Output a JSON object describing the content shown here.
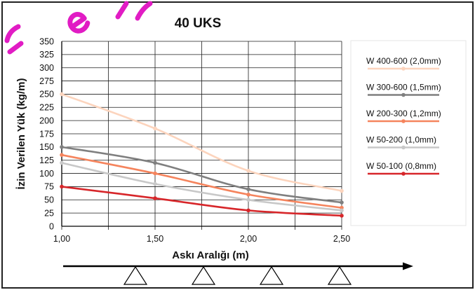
{
  "chart_data": {
    "type": "line",
    "title": "40 UKS",
    "xlabel": "Askı Aralığı (m)",
    "ylabel": "İzin Verilen Yük (kg/m)",
    "x": [
      1.0,
      1.5,
      2.0,
      2.5
    ],
    "x_tick_labels": [
      "1,00",
      "1,50",
      "2,00",
      "2,50"
    ],
    "xlim": [
      1.0,
      2.5
    ],
    "x_grid_step": 0.25,
    "ylim": [
      0,
      350
    ],
    "y_ticks": [
      0,
      25,
      50,
      75,
      100,
      125,
      150,
      175,
      200,
      225,
      250,
      275,
      300,
      325,
      350
    ],
    "grid": true,
    "legend": "right",
    "smooth": true,
    "markers": true,
    "series": [
      {
        "name": "W 400-600 (2,0mm)",
        "color": "#fcd4bd",
        "values": [
          250,
          185,
          105,
          67
        ]
      },
      {
        "name": "W 300-600 (1,5mm)",
        "color": "#7f7f7f",
        "values": [
          150,
          120,
          70,
          45
        ]
      },
      {
        "name": "W 200-300 (1,2mm)",
        "color": "#f5845d",
        "values": [
          135,
          100,
          60,
          35
        ]
      },
      {
        "name": "W 50-200 (1,0mm)",
        "color": "#c8c8c8",
        "values": [
          120,
          80,
          50,
          30
        ]
      },
      {
        "name": "W 50-100 (0,8mm)",
        "color": "#d7262a",
        "values": [
          75,
          53,
          30,
          20
        ]
      }
    ]
  }
}
